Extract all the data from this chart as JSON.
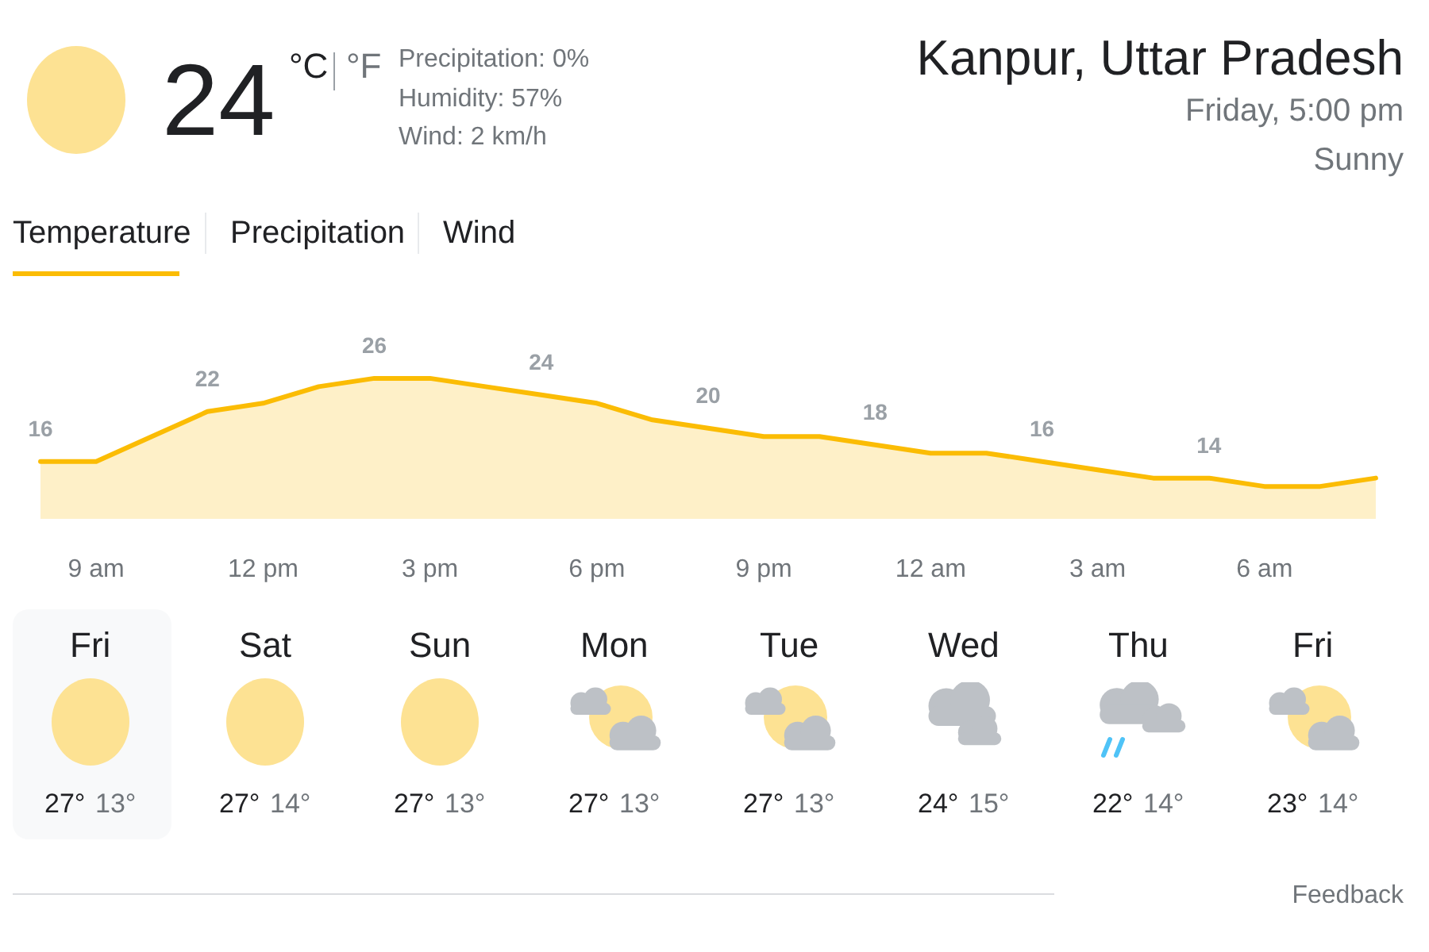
{
  "chart_data": {
    "type": "area",
    "title": "Kanpur, Uttar Pradesh",
    "subtitle": "Friday, 5:00 pm",
    "categories": [
      null,
      "9 am",
      null,
      null,
      "12 pm",
      null,
      null,
      "3 pm",
      null,
      null,
      "6 pm",
      null,
      null,
      "9 pm",
      null,
      null,
      "12 am",
      null,
      null,
      "3 am",
      null,
      null,
      "6 am",
      null,
      null
    ],
    "values": [
      16,
      16,
      19,
      22,
      23,
      25,
      26,
      26,
      25,
      24,
      23,
      21,
      20,
      19,
      19,
      18,
      17,
      17,
      16,
      15,
      14,
      14,
      13,
      13,
      14
    ],
    "value_labels": [
      "16",
      null,
      null,
      "22",
      null,
      null,
      "26",
      null,
      null,
      "24",
      null,
      null,
      "20",
      null,
      null,
      "18",
      null,
      null,
      "16",
      null,
      null,
      "14",
      null,
      null,
      null
    ],
    "color": "#fbbc04",
    "annotations": [
      "24",
      "°C",
      "°F",
      "Precipitation: 0%",
      "Humidity: 57%",
      "Wind: 2 km/h",
      "Sunny",
      "Temperature",
      "Precipitation",
      "Wind",
      "Fri",
      "27°",
      "13°",
      "Sat",
      "27°",
      "14°",
      "Sun",
      "27°",
      "13°",
      "Mon",
      "27°",
      "13°",
      "Tue",
      "27°",
      "13°",
      "Wed",
      "24°",
      "15°",
      "Thu",
      "22°",
      "14°",
      "Fri",
      "23°",
      "14°",
      "Feedback"
    ]
  }
}
